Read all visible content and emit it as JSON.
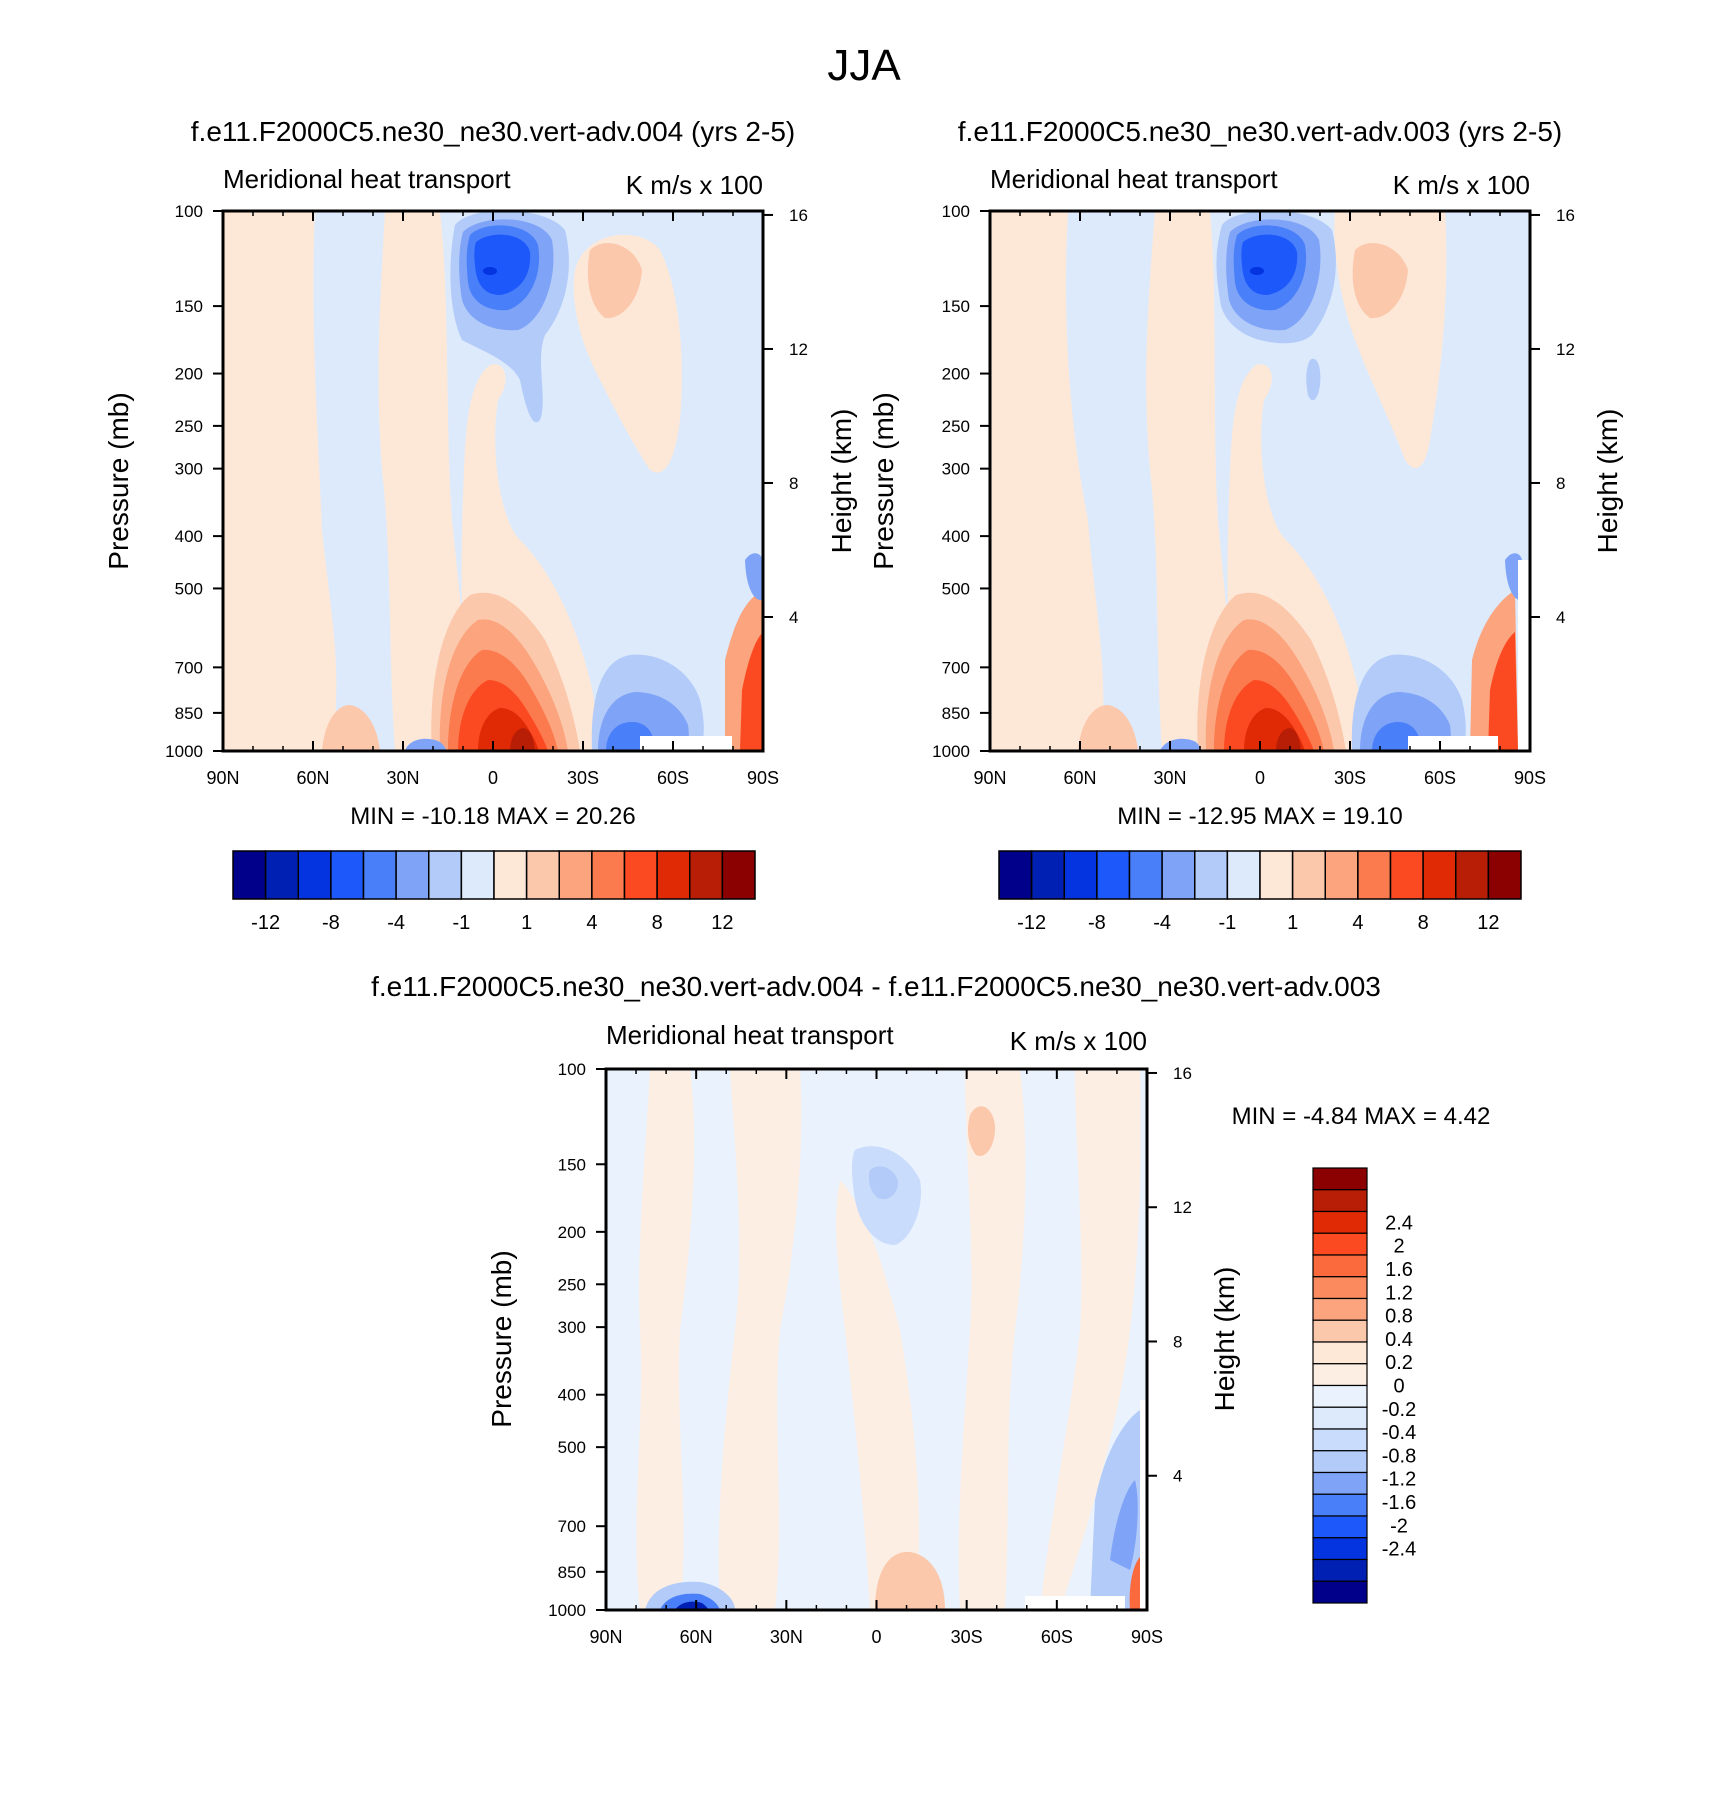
{
  "figure": {
    "title": "JJA",
    "colors": {
      "main16": [
        "#00008b",
        "#0020b4",
        "#0433e0",
        "#1d58fb",
        "#4a7ffa",
        "#7ea3f7",
        "#b3cbf9",
        "#dceafc",
        "#fde8d8",
        "#fcc8ac",
        "#fba47e",
        "#fb7a4e",
        "#fb4a21",
        "#e02a06",
        "#b81e06",
        "#8b0000"
      ],
      "diff20": [
        "#00008b",
        "#0020b4",
        "#0433e0",
        "#1d58fb",
        "#4a7ffa",
        "#7ea3f7",
        "#b3cbf9",
        "#c9dcfb",
        "#dceafc",
        "#e9f2fd",
        "#fdeee3",
        "#fde8d8",
        "#fcc8ac",
        "#fba47e",
        "#fb8a5e",
        "#fb6a3d",
        "#fb4a21",
        "#e02a06",
        "#b81e06",
        "#8b0000"
      ]
    }
  },
  "chart_data": [
    {
      "id": "panel_004",
      "type": "heatmap",
      "title": "f.e11.F2000C5.ne30_ne30.vert-adv.004 (yrs 2-5)",
      "left_label": "Meridional heat transport",
      "right_label": "K m/s x 100",
      "ylabel": "Pressure (mb)",
      "ylabel_right": "Height (km)",
      "x_ticks": [
        "90N",
        "60N",
        "30N",
        "0",
        "30S",
        "60S",
        "90S"
      ],
      "y_ticks": [
        "100",
        "150",
        "200",
        "250",
        "300",
        "400",
        "500",
        "700",
        "850",
        "1000"
      ],
      "y_right_ticks": [
        "16",
        "12",
        "8",
        "4"
      ],
      "xlim": [
        90,
        -90
      ],
      "ylim": [
        1000,
        100
      ],
      "stats": "MIN = -10.18  MAX =  20.26",
      "min": -10.18,
      "max": 20.26,
      "contour_levels": [
        -14,
        -12,
        -10,
        -8,
        -6,
        -4,
        -2,
        -1,
        0,
        1,
        2,
        4,
        6,
        8,
        10,
        12,
        14
      ],
      "colorbar_labels": [
        "-12",
        "-8",
        "-4",
        "-1",
        "1",
        "4",
        "8",
        "12"
      ],
      "colorbar_orientation": "horizontal"
    },
    {
      "id": "panel_003",
      "type": "heatmap",
      "title": "f.e11.F2000C5.ne30_ne30.vert-adv.003 (yrs 2-5)",
      "left_label": "Meridional heat transport",
      "right_label": "K m/s x 100",
      "ylabel": "Pressure (mb)",
      "ylabel_right": "Height (km)",
      "x_ticks": [
        "90N",
        "60N",
        "30N",
        "0",
        "30S",
        "60S",
        "90S"
      ],
      "y_ticks": [
        "100",
        "150",
        "200",
        "250",
        "300",
        "400",
        "500",
        "700",
        "850",
        "1000"
      ],
      "y_right_ticks": [
        "16",
        "12",
        "8",
        "4"
      ],
      "xlim": [
        90,
        -90
      ],
      "ylim": [
        1000,
        100
      ],
      "stats": "MIN = -12.95  MAX =  19.10",
      "min": -12.95,
      "max": 19.1,
      "contour_levels": [
        -14,
        -12,
        -10,
        -8,
        -6,
        -4,
        -2,
        -1,
        0,
        1,
        2,
        4,
        6,
        8,
        10,
        12,
        14
      ],
      "colorbar_labels": [
        "-12",
        "-8",
        "-4",
        "-1",
        "1",
        "4",
        "8",
        "12"
      ],
      "colorbar_orientation": "horizontal"
    },
    {
      "id": "panel_diff",
      "type": "heatmap",
      "title": "f.e11.F2000C5.ne30_ne30.vert-adv.004 - f.e11.F2000C5.ne30_ne30.vert-adv.003",
      "left_label": "Meridional heat transport",
      "right_label": "K m/s x 100",
      "ylabel": "Pressure (mb)",
      "ylabel_right": "Height (km)",
      "x_ticks": [
        "90N",
        "60N",
        "30N",
        "0",
        "30S",
        "60S",
        "90S"
      ],
      "y_ticks": [
        "100",
        "150",
        "200",
        "250",
        "300",
        "400",
        "500",
        "700",
        "850",
        "1000"
      ],
      "y_right_ticks": [
        "16",
        "12",
        "8",
        "4"
      ],
      "xlim": [
        90,
        -90
      ],
      "ylim": [
        1000,
        100
      ],
      "stats": "MIN =  -4.84  MAX =   4.42",
      "min": -4.84,
      "max": 4.42,
      "contour_levels": [
        -2.4,
        -2,
        -1.6,
        -1.2,
        -0.8,
        -0.4,
        -0.2,
        0,
        0.2,
        0.4,
        0.8,
        1.2,
        1.6,
        2,
        2.4
      ],
      "colorbar_labels": [
        "2.4",
        "2",
        "1.6",
        "1.2",
        "0.8",
        "0.4",
        "0.2",
        "0",
        "-0.2",
        "-0.4",
        "-0.8",
        "-1.2",
        "-1.6",
        "-2",
        "-2.4"
      ],
      "colorbar_orientation": "vertical"
    }
  ]
}
